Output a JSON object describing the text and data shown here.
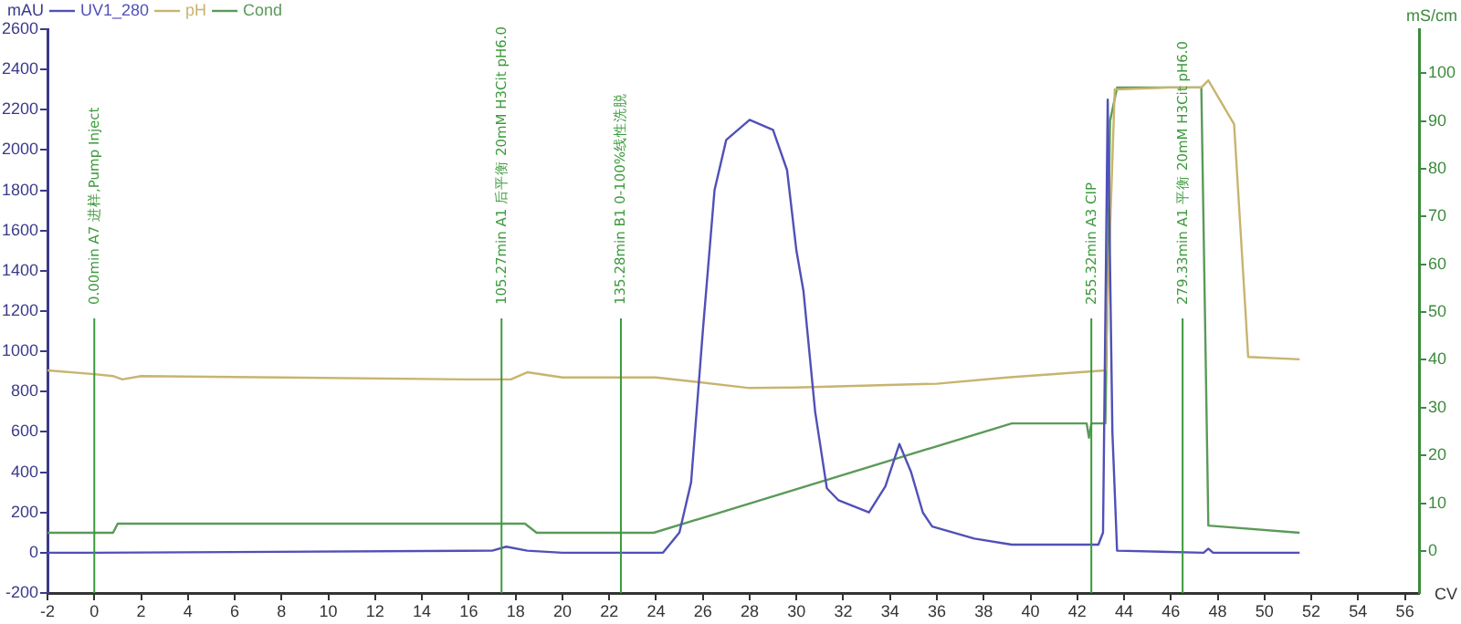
{
  "chart_data": {
    "type": "line",
    "ylabel": "mAU",
    "y2label": "mS/cm",
    "xlabel": "CV",
    "xlim": [
      -2,
      56.6
    ],
    "xticks": [
      -2,
      0,
      2,
      4,
      6,
      8,
      10,
      12,
      14,
      16,
      18,
      20,
      22,
      24,
      26,
      28,
      30,
      32,
      34,
      36,
      38,
      40,
      42,
      44,
      46,
      48,
      50,
      52,
      54,
      56
    ],
    "ylim": [
      -200,
      2600
    ],
    "yticks": [
      -200,
      0,
      200,
      400,
      600,
      800,
      1000,
      1200,
      1400,
      1600,
      1800,
      2000,
      2200,
      2400,
      2600
    ],
    "y2lim": [
      -8.8,
      109.2
    ],
    "y2ticks": [
      0,
      10,
      20,
      30,
      40,
      50,
      60,
      70,
      80,
      90,
      100
    ],
    "grid": false,
    "legend": "top left",
    "marker": "none",
    "line_style": "solid",
    "series": [
      {
        "name": "UV1_280",
        "color": "#5050b8",
        "x": [
          -2,
          0,
          17,
          17.6,
          18.5,
          20,
          24.3,
          25,
          25.5,
          26,
          26.5,
          27,
          28,
          29,
          29.6,
          30,
          30.3,
          30.8,
          31.3,
          31.8,
          33.1,
          33.8,
          34.4,
          34.9,
          35.4,
          35.8,
          37.6,
          39.2,
          42.9,
          43.1,
          43.3,
          43.5,
          43.7,
          47.4,
          47.6,
          47.8,
          51.5
        ],
        "values": [
          0,
          0,
          10,
          30,
          10,
          0,
          0,
          100,
          350,
          1100,
          1800,
          2050,
          2150,
          2100,
          1900,
          1500,
          1300,
          700,
          320,
          260,
          200,
          330,
          540,
          400,
          200,
          130,
          70,
          40,
          40,
          100,
          2250,
          600,
          10,
          0,
          20,
          0,
          0
        ]
      },
      {
        "name": "pH",
        "color": "#c8b46e",
        "axis": "y2",
        "x": [
          -2,
          0,
          0.8,
          1.2,
          2,
          8,
          16,
          17.8,
          18.5,
          20,
          24,
          25.5,
          28,
          30,
          36,
          39,
          43.2,
          43.6,
          46,
          47.3,
          47.6,
          48.7,
          49.2,
          49.3,
          51.5
        ],
        "values": [
          37.8,
          37,
          36.6,
          35.9,
          36.6,
          36.3,
          35.9,
          35.9,
          37.4,
          36.3,
          36.3,
          35.5,
          34.1,
          34.2,
          35,
          36.3,
          37.8,
          96.6,
          97,
          97,
          98.5,
          89.3,
          49,
          40.6,
          40.1
        ]
      },
      {
        "name": "Cond",
        "color": "#5a9a5a",
        "axis": "y2",
        "x": [
          -2,
          0.8,
          1,
          18.4,
          18.9,
          23.9,
          39.2,
          42.4,
          42.5,
          42.6,
          43.2,
          43.4,
          43.7,
          47.3,
          47.6,
          51.5
        ],
        "values": [
          3.8,
          3.8,
          5.7,
          5.7,
          3.8,
          3.8,
          26.7,
          26.7,
          23.7,
          26.7,
          26.7,
          90,
          97,
          97,
          5.3,
          3.8
        ]
      }
    ],
    "ref_lines": [
      {
        "axis": "x",
        "value": 0,
        "label": "0.00min A7 进样,Pump Inject",
        "color": "#3c9a3c"
      },
      {
        "axis": "x",
        "value": 17.4,
        "label": "105.27min A1 后平衡 20mM H3Cit pH6.0",
        "color": "#3c9a3c"
      },
      {
        "axis": "x",
        "value": 22.5,
        "label": "135.28min B1 0-100%线性洗脱",
        "color": "#3c9a3c"
      },
      {
        "axis": "x",
        "value": 42.6,
        "label": "255.32min A3 CIP",
        "color": "#3c9a3c"
      },
      {
        "axis": "x",
        "value": 46.5,
        "label": "279.33min A1 平衡 20mM H3Cit pH6.0",
        "color": "#3c9a3c"
      }
    ]
  }
}
